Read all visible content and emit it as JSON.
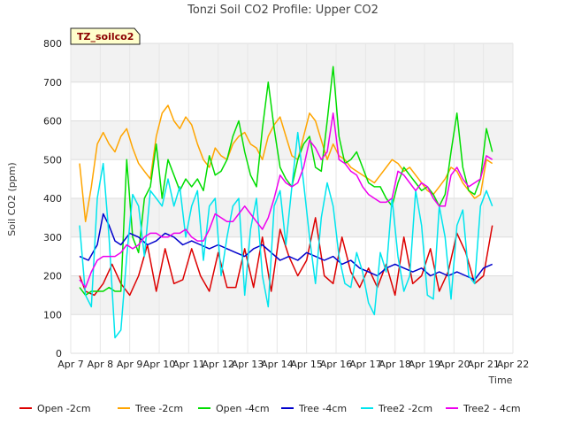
{
  "chart_data": {
    "type": "line",
    "title": "Tonzi Soil CO2 Profile: Upper CO2",
    "xlabel": "Time",
    "ylabel": "Soil CO2 (ppm)",
    "tag": "TZ_soilco2",
    "ylim": [
      0,
      800
    ],
    "yticks": [
      0,
      100,
      200,
      300,
      400,
      500,
      600,
      700,
      800
    ],
    "xlim": [
      7,
      22
    ],
    "xticks": [
      {
        "value": 7,
        "label": "Apr 7"
      },
      {
        "value": 8,
        "label": "Apr 8"
      },
      {
        "value": 9,
        "label": "Apr 9"
      },
      {
        "value": 10,
        "label": "Apr 10"
      },
      {
        "value": 11,
        "label": "Apr 11"
      },
      {
        "value": 12,
        "label": "Apr 12"
      },
      {
        "value": 13,
        "label": "Apr 13"
      },
      {
        "value": 14,
        "label": "Apr 14"
      },
      {
        "value": 15,
        "label": "Apr 15"
      },
      {
        "value": 16,
        "label": "Apr 16"
      },
      {
        "value": 17,
        "label": "Apr 17"
      },
      {
        "value": 18,
        "label": "Apr 18"
      },
      {
        "value": 19,
        "label": "Apr 19"
      },
      {
        "value": 20,
        "label": "Apr 20"
      },
      {
        "value": 21,
        "label": "Apr 21"
      },
      {
        "value": 22,
        "label": "Apr 22"
      }
    ],
    "grid": true,
    "legend_position": "bottom",
    "series": [
      {
        "name": "Open -2cm",
        "color": "#dd0000",
        "x": [
          7.3,
          7.5,
          7.8,
          8.1,
          8.4,
          8.7,
          9.0,
          9.3,
          9.6,
          9.9,
          10.2,
          10.5,
          10.8,
          11.1,
          11.4,
          11.7,
          12.0,
          12.3,
          12.6,
          12.9,
          13.2,
          13.5,
          13.8,
          14.1,
          14.4,
          14.7,
          15.0,
          15.3,
          15.6,
          15.9,
          16.2,
          16.5,
          16.8,
          17.1,
          17.4,
          17.7,
          18.0,
          18.3,
          18.6,
          18.9,
          19.2,
          19.5,
          19.8,
          20.1,
          20.4,
          20.7,
          21.0,
          21.3
        ],
        "y": [
          200,
          160,
          150,
          180,
          230,
          180,
          150,
          200,
          280,
          160,
          270,
          180,
          190,
          270,
          200,
          160,
          260,
          170,
          170,
          270,
          170,
          300,
          160,
          320,
          250,
          200,
          240,
          350,
          200,
          180,
          300,
          210,
          170,
          220,
          170,
          230,
          150,
          300,
          180,
          200,
          270,
          160,
          210,
          310,
          260,
          180,
          200,
          330
        ]
      },
      {
        "name": "Tree -2cm",
        "color": "#ffa500",
        "x": [
          7.3,
          7.5,
          7.7,
          7.9,
          8.1,
          8.3,
          8.5,
          8.7,
          8.9,
          9.1,
          9.3,
          9.5,
          9.7,
          9.9,
          10.1,
          10.3,
          10.5,
          10.7,
          10.9,
          11.1,
          11.3,
          11.5,
          11.7,
          11.9,
          12.1,
          12.3,
          12.5,
          12.7,
          12.9,
          13.1,
          13.3,
          13.5,
          13.7,
          13.9,
          14.1,
          14.3,
          14.5,
          14.7,
          14.9,
          15.1,
          15.3,
          15.5,
          15.7,
          15.9,
          16.1,
          16.3,
          16.5,
          16.7,
          16.9,
          17.1,
          17.3,
          17.5,
          17.7,
          17.9,
          18.1,
          18.3,
          18.5,
          18.7,
          18.9,
          19.1,
          19.3,
          19.5,
          19.7,
          19.9,
          20.1,
          20.3,
          20.5,
          20.7,
          20.9,
          21.1,
          21.3
        ],
        "y": [
          490,
          340,
          430,
          540,
          570,
          540,
          520,
          560,
          580,
          530,
          490,
          470,
          450,
          560,
          620,
          640,
          600,
          580,
          610,
          590,
          540,
          500,
          480,
          530,
          510,
          500,
          540,
          560,
          570,
          540,
          530,
          500,
          560,
          590,
          610,
          560,
          510,
          500,
          560,
          620,
          600,
          550,
          500,
          540,
          510,
          500,
          480,
          470,
          460,
          450,
          440,
          460,
          480,
          500,
          490,
          470,
          480,
          460,
          440,
          420,
          410,
          430,
          450,
          480,
          470,
          440,
          420,
          400,
          410,
          500,
          490
        ]
      },
      {
        "name": "Open -4cm",
        "color": "#00dd00",
        "x": [
          7.3,
          7.5,
          7.7,
          7.9,
          8.1,
          8.3,
          8.5,
          8.7,
          8.9,
          9.1,
          9.3,
          9.5,
          9.7,
          9.9,
          10.1,
          10.3,
          10.5,
          10.7,
          10.9,
          11.1,
          11.3,
          11.5,
          11.7,
          11.9,
          12.1,
          12.3,
          12.5,
          12.7,
          12.9,
          13.1,
          13.3,
          13.5,
          13.7,
          13.9,
          14.1,
          14.3,
          14.5,
          14.7,
          14.9,
          15.1,
          15.3,
          15.5,
          15.7,
          15.9,
          16.1,
          16.3,
          16.5,
          16.7,
          16.9,
          17.1,
          17.3,
          17.5,
          17.7,
          17.9,
          18.1,
          18.3,
          18.5,
          18.7,
          18.9,
          19.1,
          19.3,
          19.5,
          19.7,
          19.9,
          20.1,
          20.3,
          20.5,
          20.7,
          20.9,
          21.1,
          21.3
        ],
        "y": [
          170,
          150,
          160,
          160,
          160,
          170,
          160,
          160,
          500,
          300,
          260,
          400,
          430,
          540,
          400,
          500,
          460,
          420,
          450,
          430,
          450,
          420,
          510,
          460,
          470,
          500,
          560,
          600,
          520,
          460,
          430,
          580,
          700,
          580,
          480,
          450,
          430,
          500,
          540,
          560,
          480,
          470,
          600,
          740,
          560,
          490,
          500,
          520,
          480,
          440,
          430,
          430,
          400,
          380,
          440,
          480,
          460,
          440,
          420,
          430,
          410,
          380,
          410,
          520,
          620,
          480,
          420,
          410,
          450,
          580,
          520
        ]
      },
      {
        "name": "Tree -4cm",
        "color": "#0000cc",
        "x": [
          7.3,
          7.6,
          7.9,
          8.1,
          8.3,
          8.5,
          8.7,
          9.0,
          9.3,
          9.6,
          9.9,
          10.2,
          10.5,
          10.8,
          11.1,
          11.4,
          11.7,
          12.0,
          12.3,
          12.6,
          12.9,
          13.2,
          13.5,
          13.8,
          14.1,
          14.4,
          14.7,
          15.0,
          15.3,
          15.6,
          15.9,
          16.2,
          16.5,
          16.8,
          17.1,
          17.4,
          17.7,
          18.0,
          18.3,
          18.6,
          18.9,
          19.2,
          19.5,
          19.8,
          20.1,
          20.4,
          20.7,
          21.0,
          21.3
        ],
        "y": [
          250,
          240,
          280,
          360,
          330,
          290,
          280,
          310,
          300,
          280,
          290,
          310,
          300,
          280,
          290,
          280,
          270,
          280,
          270,
          260,
          250,
          270,
          280,
          260,
          240,
          250,
          240,
          260,
          250,
          240,
          250,
          230,
          240,
          220,
          210,
          200,
          220,
          230,
          220,
          210,
          220,
          200,
          210,
          200,
          210,
          200,
          190,
          220,
          230
        ]
      },
      {
        "name": "Tree2 -2cm",
        "color": "#00e5ee",
        "x": [
          7.3,
          7.5,
          7.7,
          7.9,
          8.1,
          8.3,
          8.5,
          8.7,
          8.9,
          9.1,
          9.3,
          9.5,
          9.7,
          9.9,
          10.1,
          10.3,
          10.5,
          10.7,
          10.9,
          11.1,
          11.3,
          11.5,
          11.7,
          11.9,
          12.1,
          12.3,
          12.5,
          12.7,
          12.9,
          13.1,
          13.3,
          13.5,
          13.7,
          13.9,
          14.1,
          14.3,
          14.5,
          14.7,
          14.9,
          15.1,
          15.3,
          15.5,
          15.7,
          15.9,
          16.1,
          16.3,
          16.5,
          16.7,
          16.9,
          17.1,
          17.3,
          17.5,
          17.7,
          17.9,
          18.1,
          18.3,
          18.5,
          18.7,
          18.9,
          19.1,
          19.3,
          19.5,
          19.7,
          19.9,
          20.1,
          20.3,
          20.5,
          20.7,
          20.9,
          21.1,
          21.3
        ],
        "y": [
          330,
          150,
          120,
          400,
          490,
          300,
          40,
          60,
          250,
          410,
          380,
          250,
          420,
          400,
          380,
          450,
          380,
          430,
          300,
          380,
          420,
          240,
          380,
          400,
          200,
          300,
          380,
          400,
          150,
          320,
          400,
          200,
          120,
          380,
          420,
          280,
          430,
          570,
          440,
          300,
          180,
          350,
          440,
          380,
          250,
          180,
          170,
          260,
          210,
          130,
          100,
          260,
          210,
          400,
          250,
          160,
          200,
          420,
          330,
          150,
          140,
          380,
          300,
          140,
          330,
          370,
          200,
          180,
          380,
          420,
          380
        ]
      },
      {
        "name": "Tree2 - 4cm",
        "color": "#ee00ee",
        "x": [
          7.3,
          7.5,
          7.7,
          7.9,
          8.1,
          8.3,
          8.5,
          8.7,
          8.9,
          9.1,
          9.3,
          9.5,
          9.7,
          9.9,
          10.1,
          10.3,
          10.5,
          10.7,
          10.9,
          11.1,
          11.3,
          11.5,
          11.7,
          11.9,
          12.1,
          12.3,
          12.5,
          12.7,
          12.9,
          13.1,
          13.3,
          13.5,
          13.7,
          13.9,
          14.1,
          14.3,
          14.5,
          14.7,
          14.9,
          15.1,
          15.3,
          15.5,
          15.7,
          15.9,
          16.1,
          16.3,
          16.5,
          16.7,
          16.9,
          17.1,
          17.3,
          17.5,
          17.7,
          17.9,
          18.1,
          18.3,
          18.5,
          18.7,
          18.9,
          19.1,
          19.3,
          19.5,
          19.7,
          19.9,
          20.1,
          20.3,
          20.5,
          20.7,
          20.9,
          21.1,
          21.3
        ],
        "y": [
          190,
          170,
          210,
          240,
          250,
          250,
          250,
          260,
          280,
          270,
          280,
          300,
          310,
          310,
          300,
          300,
          310,
          310,
          320,
          300,
          290,
          290,
          320,
          360,
          350,
          340,
          340,
          360,
          380,
          360,
          340,
          320,
          350,
          400,
          460,
          440,
          430,
          440,
          480,
          550,
          530,
          500,
          520,
          620,
          500,
          490,
          470,
          460,
          430,
          410,
          400,
          390,
          390,
          400,
          470,
          460,
          440,
          420,
          440,
          430,
          400,
          380,
          380,
          460,
          480,
          450,
          430,
          440,
          450,
          510,
          500
        ]
      }
    ]
  }
}
